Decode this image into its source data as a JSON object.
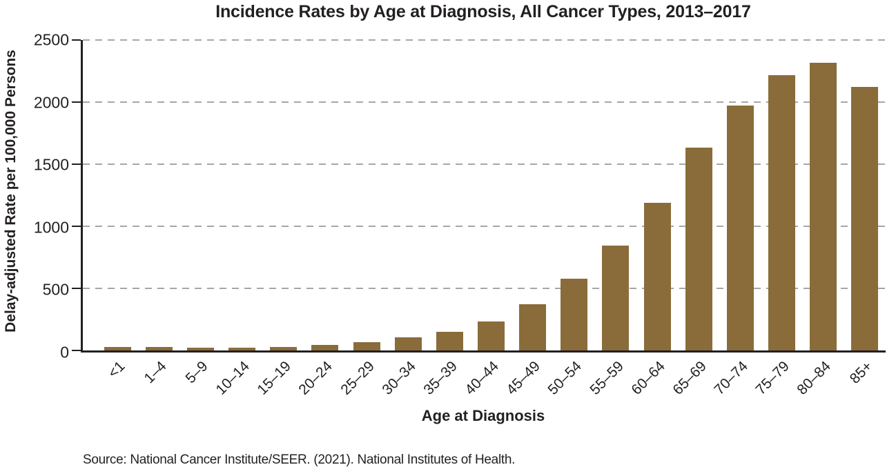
{
  "title": "Incidence Rates by Age at Diagnosis, All Cancer Types, 2013–2017",
  "source_note": "Source: National Cancer Institute/SEER. (2021). National Institutes of Health.",
  "colors": {
    "bar": "#8a6c3a",
    "text": "#231f20",
    "grid": "#a6a6a6",
    "axis": "#231f20",
    "background": "#ffffff"
  },
  "chart_data": {
    "type": "bar",
    "title": "Incidence Rates by Age at Diagnosis, All Cancer Types, 2013–2017",
    "xlabel": "Age at Diagnosis",
    "ylabel": "Delay-adjusted Rate per 100,000 Persons",
    "categories": [
      "<1",
      "1–4",
      "5–9",
      "10–14",
      "15–19",
      "20–24",
      "25–29",
      "30–34",
      "35–39",
      "40–44",
      "45–49",
      "50–54",
      "55–59",
      "60–64",
      "65–69",
      "70–74",
      "75–79",
      "80–84",
      "85+"
    ],
    "values": [
      30,
      30,
      20,
      20,
      30,
      45,
      65,
      105,
      150,
      235,
      370,
      580,
      845,
      1190,
      1635,
      1970,
      2215,
      2315,
      2120
    ],
    "ylim": [
      0,
      2500
    ],
    "yticks": [
      0,
      500,
      1000,
      1500,
      2000,
      2500
    ],
    "grid": "horizontal-dashed",
    "legend": "none"
  }
}
